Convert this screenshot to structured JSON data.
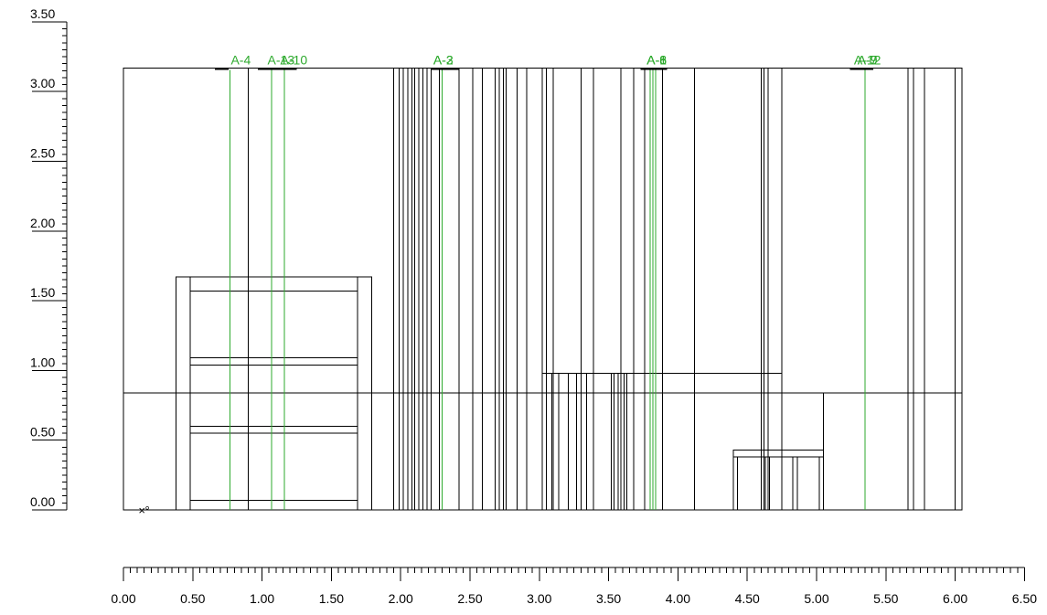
{
  "colors": {
    "background": "#ffffff",
    "lines": "#000000",
    "markers": "#2eaa2e"
  },
  "vertical_scale": {
    "tick_labels": [
      "0.00",
      "0.50",
      "1.00",
      "1.50",
      "2.00",
      "2.50",
      "3.00",
      "3.50"
    ],
    "range": [
      0.0,
      3.5
    ],
    "major_step": 0.5,
    "minor_step": 0.05
  },
  "horizontal_scale": {
    "tick_labels": [
      "0.00",
      "0.50",
      "1.00",
      "1.50",
      "2.00",
      "2.50",
      "3.00",
      "3.50",
      "4.00",
      "4.50",
      "5.00",
      "5.50",
      "6.00",
      "6.50"
    ],
    "range": [
      0.0,
      6.5
    ],
    "major_step": 0.5,
    "minor_step": 0.05
  },
  "wall": {
    "x_range": [
      0.0,
      6.05
    ],
    "height": 3.17,
    "horizontal_line_y": 0.84
  },
  "wall_lines_x": [
    0.9,
    1.95,
    1.99,
    2.02,
    2.05,
    2.08,
    2.1,
    2.13,
    2.16,
    2.19,
    2.22,
    2.28,
    2.42,
    2.52,
    2.59,
    2.68,
    2.71,
    2.74,
    2.76,
    2.84,
    2.91,
    3.02,
    3.05,
    3.1,
    3.3,
    3.39,
    3.59,
    3.68,
    3.76,
    3.89,
    4.12,
    4.6,
    4.62,
    4.65,
    4.75,
    5.66,
    5.7,
    5.78,
    6.0
  ],
  "shelf_unit": {
    "outer_x": [
      0.38,
      1.79
    ],
    "posts": [
      [
        0.38,
        0.48
      ],
      [
        1.69,
        1.79
      ]
    ],
    "top": 1.67,
    "shelves": [
      1.57,
      [
        1.04,
        1.09
      ],
      [
        0.55,
        0.6
      ],
      0.07
    ]
  },
  "low_cabinet": {
    "x_range": [
      3.02,
      4.75
    ],
    "top": 0.98,
    "dividers_x": [
      3.09,
      3.14,
      3.21,
      3.27,
      3.34,
      3.52,
      3.54,
      3.57,
      3.61,
      3.63
    ]
  },
  "table": {
    "frame_x": [
      4.6,
      5.05
    ],
    "frame_top": 0.84,
    "top_x": [
      4.4,
      5.05
    ],
    "top_y": [
      0.38,
      0.43
    ],
    "legs": [
      [
        4.4,
        4.43
      ],
      [
        4.63,
        4.66
      ],
      [
        4.83,
        4.86
      ],
      [
        5.02,
        5.05
      ]
    ]
  },
  "origin_marker": {
    "cross_symbol": "×",
    "circle_symbol": "°",
    "position": [
      0.1,
      0.0
    ]
  },
  "sections": [
    {
      "labels": [
        "A-4"
      ],
      "label_anchor_x": 0.86,
      "bar_x": [
        0.66,
        0.76
      ],
      "lines_x": [
        0.77
      ]
    },
    {
      "labels": [
        "A-13",
        "A-10"
      ],
      "label_anchor_x": 1.15,
      "bar_x": [
        0.97,
        1.25
      ],
      "lines_x": [
        1.07,
        1.16
      ]
    },
    {
      "labels": [
        "A-2",
        "A-3"
      ],
      "label_anchor_x": 2.32,
      "bar_x": [
        2.22,
        2.42
      ],
      "lines_x": [
        2.3
      ]
    },
    {
      "labels": [
        "A-6",
        "A-1",
        "A-8"
      ],
      "label_anchor_x": 3.86,
      "bar_x": [
        3.73,
        3.92
      ],
      "lines_x": [
        3.8,
        3.82,
        3.84
      ]
    },
    {
      "labels": [
        "A-9",
        "A-7",
        "A-12"
      ],
      "label_anchor_x": 5.38,
      "bar_x": [
        5.24,
        5.41
      ],
      "lines_x": [
        5.35
      ]
    }
  ]
}
